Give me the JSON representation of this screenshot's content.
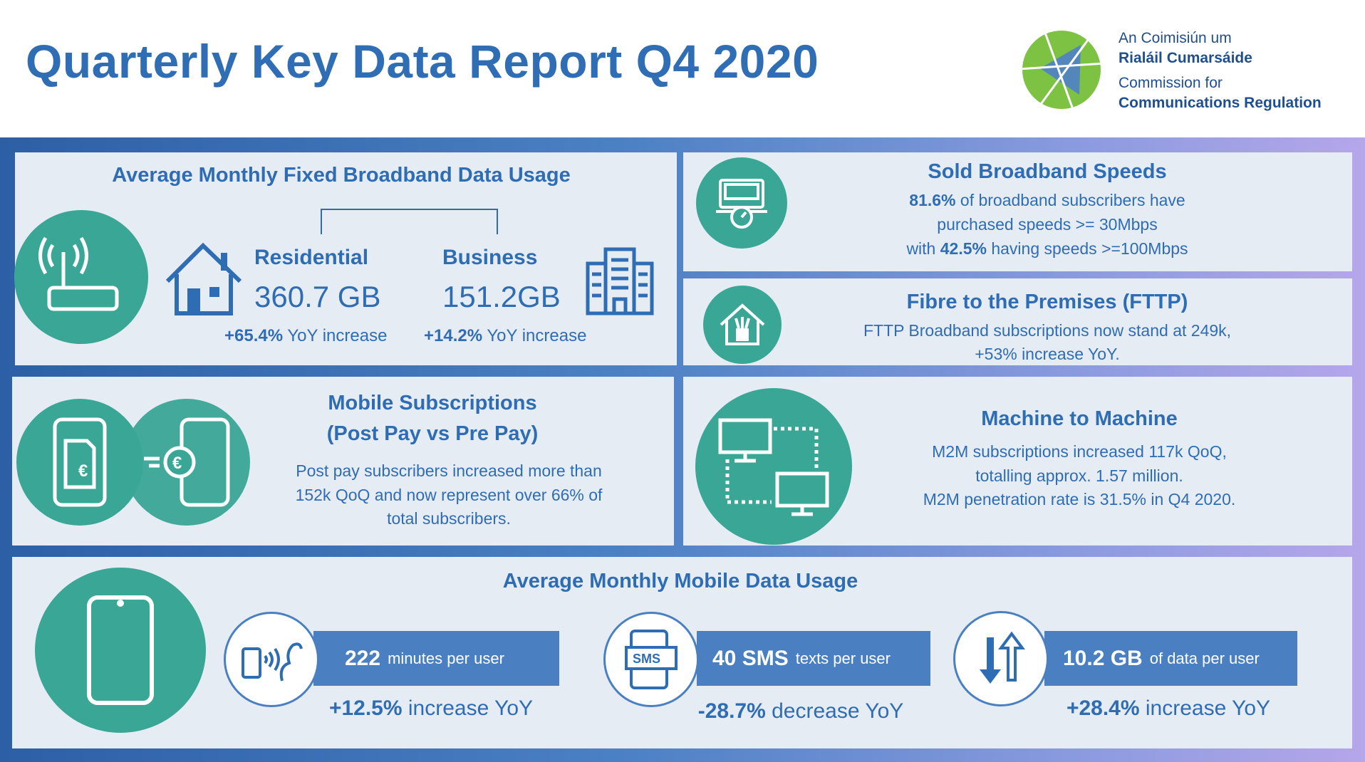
{
  "header": {
    "title": "Quarterly Key Data Report Q4 2020",
    "logo": {
      "line1": "An Coimisiún um",
      "line2": "Rialáil Cumarsáide",
      "line3": "Commission for",
      "line4": "Communications Regulation"
    }
  },
  "colors": {
    "accent": "#2e6db4",
    "teal": "#3aa796",
    "bar": "#4a80c2",
    "panel": "#e6ecf4"
  },
  "fixed_broadband": {
    "title": "Average Monthly Fixed Broadband Data Usage",
    "residential": {
      "label": "Residential",
      "value": "360.7 GB",
      "change": "+65.4%",
      "change_text": " YoY increase"
    },
    "business": {
      "label": "Business",
      "value": "151.2GB",
      "change": "+14.2%",
      "change_text": " YoY increase"
    },
    "icons": [
      "router-icon",
      "house-icon",
      "office-building-icon"
    ]
  },
  "sold_speeds": {
    "title": "Sold Broadband Speeds",
    "line1_bold": "81.6%",
    "line1": " of broadband subscribers have",
    "line2": "purchased speeds >= 30Mbps",
    "line3_pre": "with ",
    "line3_bold": "42.5%",
    "line3": " having speeds >=100Mbps",
    "icon": "laptop-speedometer-icon"
  },
  "fttp": {
    "title": "Fibre to the Premises (FTTP)",
    "line1": "FTTP Broadband subscriptions now stand at 249k,",
    "line2": "+53% increase YoY.",
    "icon": "house-fibre-icon"
  },
  "mobile_subs": {
    "title1": "Mobile Subscriptions",
    "title2": "(Post Pay vs Pre Pay)",
    "line1": "Post pay subscribers increased more than",
    "line2": "152k QoQ and now represent over 66% of",
    "line3": "total subscribers.",
    "icons": [
      "phone-bill-icon",
      "phone-euro-icon"
    ]
  },
  "m2m": {
    "title": "Machine to Machine",
    "line1": "M2M subscriptions increased 117k QoQ,",
    "line2": "totalling approx. 1.57 million.",
    "line3": "M2M penetration rate is 31.5% in Q4 2020.",
    "icon": "connected-monitors-icon"
  },
  "mobile_data": {
    "title": "Average Monthly Mobile Data Usage",
    "voice": {
      "value": "222",
      "unit": "minutes per user",
      "change": "+12.5%",
      "change_text": " increase YoY",
      "icon": "phone-voice-icon"
    },
    "sms": {
      "value": "40 SMS",
      "unit": "texts per user",
      "change": "-28.7%",
      "change_text": " decrease YoY",
      "icon": "sms-icon"
    },
    "data": {
      "value": "10.2 GB",
      "unit": "of data per user",
      "change": "+28.4%",
      "change_text": " increase YoY",
      "icon": "download-upload-arrows-icon"
    }
  }
}
